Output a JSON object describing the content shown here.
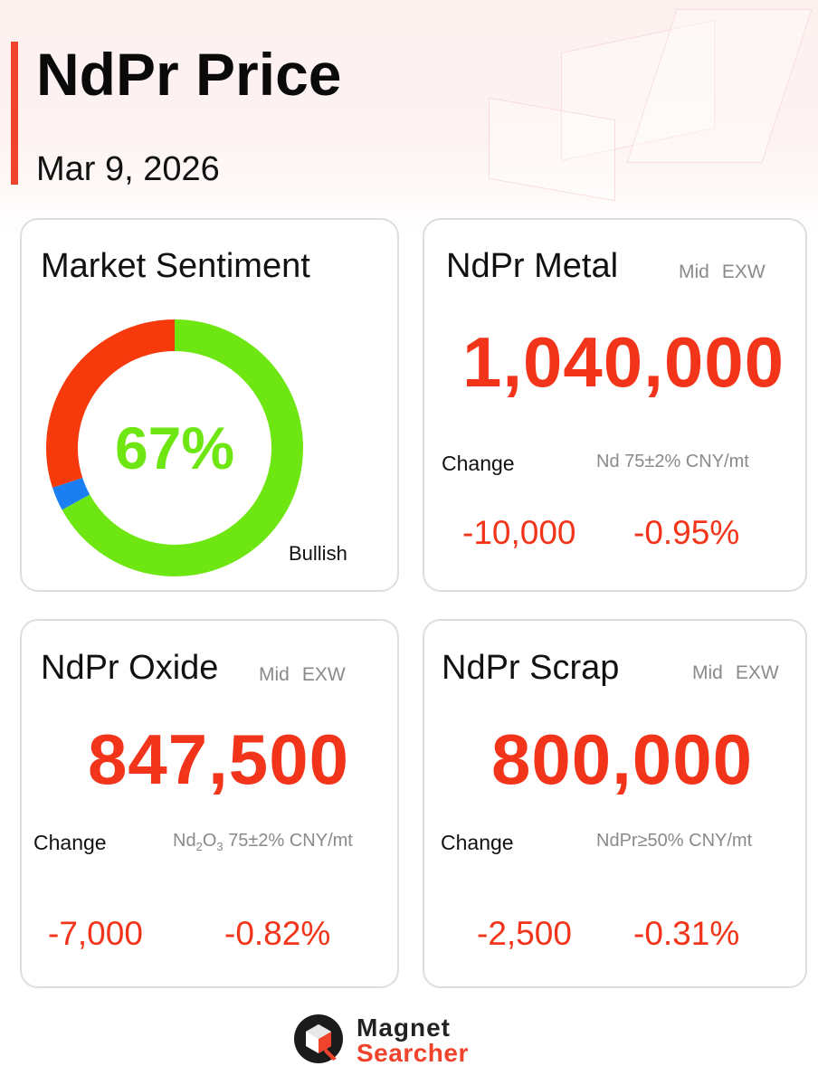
{
  "header": {
    "title": "NdPr Price",
    "date": "Mar 9, 2026"
  },
  "colors": {
    "accent": "#f0432b",
    "price_red": "#f2351a",
    "bullish_green": "#6ee612",
    "bearish_red": "#f63a0c",
    "neutral_blue": "#1a7ff0"
  },
  "sentiment": {
    "title": "Market Sentiment",
    "value_label": "67%",
    "bullish_fraction": 0.67,
    "neutral_fraction": 0.03,
    "bearish_fraction": 0.3,
    "bullish_label": "Bullish"
  },
  "metal": {
    "title": "NdPr Metal",
    "meta_mid": "Mid",
    "meta_exw": "EXW",
    "price": "1,040,000",
    "change_label": "Change",
    "spec": "Nd 75±2% CNY/mt",
    "change_abs": "-10,000",
    "change_pct": "-0.95%"
  },
  "oxide": {
    "title": "NdPr Oxide",
    "meta_mid": "Mid",
    "meta_exw": "EXW",
    "price": "847,500",
    "change_label": "Change",
    "spec_prefix": "Nd",
    "spec_sub1": "2",
    "spec_mid": "O",
    "spec_sub2": "3",
    "spec_suffix": " 75±2% CNY/mt",
    "change_abs": "-7,000",
    "change_pct": "-0.82%"
  },
  "scrap": {
    "title": "NdPr Scrap",
    "meta_mid": "Mid",
    "meta_exw": "EXW",
    "price": "800,000",
    "change_label": "Change",
    "spec": "NdPr≥50% CNY/mt",
    "change_abs": "-2,500",
    "change_pct": "-0.31%"
  },
  "logo": {
    "line1": "Magnet",
    "line2": "Searcher",
    "icon": "magnet-searcher-logo-icon"
  }
}
